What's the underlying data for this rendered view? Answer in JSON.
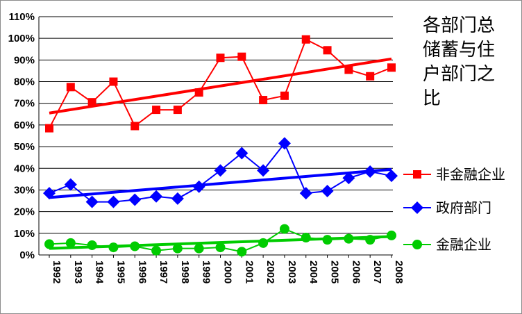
{
  "chart_data": {
    "type": "line",
    "title": "各部门总储蓄与住户部门之比",
    "title_lines": [
      "各部门总",
      "储蓄与住",
      "户部门之",
      "比"
    ],
    "x": [
      "1992",
      "1993",
      "1994",
      "1995",
      "1996",
      "1997",
      "1998",
      "1999",
      "2000",
      "2001",
      "2002",
      "2003",
      "2004",
      "2005",
      "2006",
      "2007",
      "2008"
    ],
    "y_ticks": [
      "0%",
      "10%",
      "20%",
      "30%",
      "40%",
      "50%",
      "60%",
      "70%",
      "80%",
      "90%",
      "100%",
      "110%"
    ],
    "ylim": [
      0,
      110
    ],
    "y_unit": "%",
    "grid": true,
    "legend_position": "right",
    "series": [
      {
        "name": "非金融企业",
        "color": "#ff0000",
        "marker": "square",
        "values": [
          58.5,
          77.5,
          70.5,
          80,
          59.5,
          67,
          67,
          75,
          91,
          91.5,
          71.5,
          73.5,
          99.5,
          94.5,
          85.5,
          82.5,
          86.5
        ],
        "trend": [
          65.5,
          90.5
        ]
      },
      {
        "name": "政府部门",
        "color": "#0000ff",
        "marker": "diamond",
        "values": [
          28.5,
          32.5,
          24.5,
          24.5,
          25.5,
          27,
          26,
          31.5,
          39,
          47,
          39,
          51.5,
          28.5,
          29.5,
          35.5,
          38.5,
          36.5
        ],
        "trend": [
          26.5,
          39.5
        ]
      },
      {
        "name": "金融企业",
        "color": "#00cc00",
        "marker": "circle",
        "values": [
          5,
          5.5,
          4.5,
          3.5,
          4,
          2,
          3,
          3,
          3.5,
          1.5,
          5.5,
          12,
          8,
          7,
          7.5,
          7,
          9
        ],
        "trend": [
          3,
          8.5
        ]
      }
    ]
  }
}
